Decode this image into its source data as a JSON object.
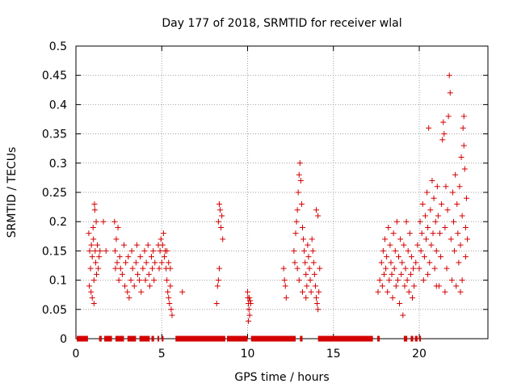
{
  "chart_data": {
    "type": "scatter",
    "title": "Day 177 of 2018, SRMTID for receiver wlal",
    "xlabel": "GPS time / hours",
    "ylabel": "SRMTID / TECUs",
    "xlim": [
      0,
      24
    ],
    "ylim": [
      0,
      0.5
    ],
    "xticks": [
      0,
      5,
      10,
      15,
      20
    ],
    "xtick_labels": [
      "0",
      "5",
      "10",
      "15",
      "20"
    ],
    "yticks": [
      0,
      0.05,
      0.1,
      0.15,
      0.2,
      0.25,
      0.3,
      0.35,
      0.4,
      0.45,
      0.5
    ],
    "ytick_labels": [
      "0",
      "0.05",
      "0.1",
      "0.15",
      "0.2",
      "0.25",
      "0.3",
      "0.35",
      "0.4",
      "0.45",
      "0.5"
    ],
    "grid": true,
    "marker": "+",
    "marker_color": "#d40000",
    "series": [
      {
        "name": "SRMTID",
        "points": [
          [
            0.75,
            0.18
          ],
          [
            0.78,
            0.09
          ],
          [
            0.8,
            0.15
          ],
          [
            0.85,
            0.12
          ],
          [
            0.88,
            0.08
          ],
          [
            0.9,
            0.16
          ],
          [
            0.95,
            0.14
          ],
          [
            1.0,
            0.19
          ],
          [
            1.02,
            0.17
          ],
          [
            1.05,
            0.1
          ],
          [
            1.08,
            0.23
          ],
          [
            1.1,
            0.22
          ],
          [
            1.12,
            0.15
          ],
          [
            1.15,
            0.13
          ],
          [
            1.18,
            0.2
          ],
          [
            1.2,
            0.11
          ],
          [
            1.25,
            0.16
          ],
          [
            1.3,
            0.12
          ],
          [
            1.35,
            0.14
          ],
          [
            0.95,
            0.07
          ],
          [
            1.05,
            0.06
          ],
          [
            1.4,
            0.15
          ],
          [
            1.6,
            0.2
          ],
          [
            1.75,
            0.15
          ],
          [
            2.25,
            0.2
          ],
          [
            2.28,
            0.15
          ],
          [
            2.3,
            0.12
          ],
          [
            2.35,
            0.17
          ],
          [
            2.4,
            0.13
          ],
          [
            2.45,
            0.19
          ],
          [
            2.5,
            0.1
          ],
          [
            2.55,
            0.14
          ],
          [
            2.6,
            0.12
          ],
          [
            2.7,
            0.11
          ],
          [
            2.8,
            0.16
          ],
          [
            2.85,
            0.09
          ],
          [
            2.9,
            0.13
          ],
          [
            3.0,
            0.08
          ],
          [
            3.05,
            0.14
          ],
          [
            3.1,
            0.07
          ],
          [
            3.2,
            0.1
          ],
          [
            3.25,
            0.15
          ],
          [
            3.3,
            0.12
          ],
          [
            3.4,
            0.09
          ],
          [
            3.5,
            0.13
          ],
          [
            3.55,
            0.16
          ],
          [
            3.6,
            0.11
          ],
          [
            3.7,
            0.1
          ],
          [
            3.75,
            0.14
          ],
          [
            3.8,
            0.08
          ],
          [
            3.9,
            0.12
          ],
          [
            4.0,
            0.15
          ],
          [
            4.05,
            0.1
          ],
          [
            4.1,
            0.13
          ],
          [
            4.2,
            0.16
          ],
          [
            4.25,
            0.11
          ],
          [
            4.3,
            0.09
          ],
          [
            4.4,
            0.14
          ],
          [
            4.45,
            0.12
          ],
          [
            4.5,
            0.15
          ],
          [
            4.55,
            0.1
          ],
          [
            4.6,
            0.13
          ],
          [
            4.8,
            0.16
          ],
          [
            4.85,
            0.12
          ],
          [
            4.9,
            0.15
          ],
          [
            4.95,
            0.17
          ],
          [
            5.0,
            0.13
          ],
          [
            5.05,
            0.16
          ],
          [
            5.1,
            0.18
          ],
          [
            5.15,
            0.14
          ],
          [
            5.2,
            0.15
          ],
          [
            5.25,
            0.12
          ],
          [
            5.3,
            0.1
          ],
          [
            5.35,
            0.08
          ],
          [
            5.4,
            0.07
          ],
          [
            5.45,
            0.06
          ],
          [
            5.5,
            0.09
          ],
          [
            5.55,
            0.05
          ],
          [
            5.6,
            0.04
          ],
          [
            5.3,
            0.15
          ],
          [
            5.4,
            0.13
          ],
          [
            5.5,
            0.12
          ],
          [
            6.2,
            0.08
          ],
          [
            8.2,
            0.06
          ],
          [
            8.25,
            0.09
          ],
          [
            8.3,
            0.2
          ],
          [
            8.35,
            0.23
          ],
          [
            8.4,
            0.22
          ],
          [
            8.45,
            0.19
          ],
          [
            8.5,
            0.21
          ],
          [
            8.55,
            0.17
          ],
          [
            8.35,
            0.12
          ],
          [
            8.3,
            0.1
          ],
          [
            10.0,
            0.08
          ],
          [
            10.02,
            0.07
          ],
          [
            10.05,
            0.06
          ],
          [
            10.08,
            0.05
          ],
          [
            10.1,
            0.07
          ],
          [
            10.12,
            0.04
          ],
          [
            10.15,
            0.065
          ],
          [
            10.18,
            0.06
          ],
          [
            10.05,
            0.03
          ],
          [
            12.1,
            0.12
          ],
          [
            12.15,
            0.1
          ],
          [
            12.2,
            0.09
          ],
          [
            12.25,
            0.07
          ],
          [
            12.7,
            0.15
          ],
          [
            12.75,
            0.13
          ],
          [
            12.8,
            0.18
          ],
          [
            12.85,
            0.2
          ],
          [
            12.9,
            0.22
          ],
          [
            12.95,
            0.25
          ],
          [
            13.0,
            0.28
          ],
          [
            13.05,
            0.3
          ],
          [
            13.1,
            0.27
          ],
          [
            13.15,
            0.23
          ],
          [
            13.2,
            0.19
          ],
          [
            13.25,
            0.17
          ],
          [
            13.3,
            0.15
          ],
          [
            13.35,
            0.13
          ],
          [
            13.4,
            0.11
          ],
          [
            13.45,
            0.09
          ],
          [
            13.5,
            0.16
          ],
          [
            13.55,
            0.14
          ],
          [
            13.6,
            0.12
          ],
          [
            13.65,
            0.1
          ],
          [
            13.7,
            0.08
          ],
          [
            13.75,
            0.17
          ],
          [
            13.8,
            0.15
          ],
          [
            13.85,
            0.13
          ],
          [
            13.9,
            0.11
          ],
          [
            13.95,
            0.09
          ],
          [
            14.0,
            0.07
          ],
          [
            14.05,
            0.06
          ],
          [
            14.1,
            0.05
          ],
          [
            14.15,
            0.08
          ],
          [
            14.2,
            0.12
          ],
          [
            14.0,
            0.22
          ],
          [
            14.1,
            0.21
          ],
          [
            13.0,
            0.1
          ],
          [
            13.2,
            0.08
          ],
          [
            13.4,
            0.07
          ],
          [
            12.9,
            0.12
          ],
          [
            17.6,
            0.08
          ],
          [
            17.7,
            0.1
          ],
          [
            17.8,
            0.13
          ],
          [
            17.85,
            0.09
          ],
          [
            17.9,
            0.15
          ],
          [
            17.95,
            0.11
          ],
          [
            18.0,
            0.17
          ],
          [
            18.05,
            0.12
          ],
          [
            18.1,
            0.14
          ],
          [
            18.15,
            0.08
          ],
          [
            18.2,
            0.19
          ],
          [
            18.25,
            0.1
          ],
          [
            18.3,
            0.16
          ],
          [
            18.35,
            0.13
          ],
          [
            18.4,
            0.11
          ],
          [
            18.45,
            0.07
          ],
          [
            18.5,
            0.18
          ],
          [
            18.55,
            0.12
          ],
          [
            18.6,
            0.15
          ],
          [
            18.65,
            0.09
          ],
          [
            18.7,
            0.2
          ],
          [
            18.75,
            0.1
          ],
          [
            18.8,
            0.14
          ],
          [
            18.85,
            0.06
          ],
          [
            18.9,
            0.17
          ],
          [
            18.95,
            0.11
          ],
          [
            19.0,
            0.13
          ],
          [
            19.05,
            0.04
          ],
          [
            19.1,
            0.16
          ],
          [
            19.15,
            0.09
          ],
          [
            19.2,
            0.12
          ],
          [
            19.25,
            0.2
          ],
          [
            19.3,
            0.1
          ],
          [
            19.35,
            0.15
          ],
          [
            19.4,
            0.08
          ],
          [
            19.45,
            0.18
          ],
          [
            19.5,
            0.11
          ],
          [
            19.55,
            0.14
          ],
          [
            19.6,
            0.07
          ],
          [
            19.65,
            0.12
          ],
          [
            19.7,
            0.09
          ],
          [
            19.8,
            0.13
          ],
          [
            19.9,
            0.16
          ],
          [
            20.0,
            0.12
          ],
          [
            20.05,
            0.2
          ],
          [
            20.1,
            0.15
          ],
          [
            20.15,
            0.18
          ],
          [
            20.2,
            0.23
          ],
          [
            20.25,
            0.1
          ],
          [
            20.3,
            0.14
          ],
          [
            20.35,
            0.21
          ],
          [
            20.4,
            0.17
          ],
          [
            20.45,
            0.25
          ],
          [
            20.5,
            0.19
          ],
          [
            20.55,
            0.36
          ],
          [
            20.6,
            0.13
          ],
          [
            20.65,
            0.22
          ],
          [
            20.7,
            0.16
          ],
          [
            20.75,
            0.27
          ],
          [
            20.8,
            0.18
          ],
          [
            20.85,
            0.24
          ],
          [
            20.9,
            0.12
          ],
          [
            20.95,
            0.2
          ],
          [
            21.0,
            0.15
          ],
          [
            21.05,
            0.26
          ],
          [
            21.1,
            0.21
          ],
          [
            21.15,
            0.09
          ],
          [
            21.2,
            0.18
          ],
          [
            21.25,
            0.14
          ],
          [
            21.3,
            0.23
          ],
          [
            21.35,
            0.34
          ],
          [
            21.4,
            0.37
          ],
          [
            21.45,
            0.35
          ],
          [
            21.5,
            0.19
          ],
          [
            21.55,
            0.26
          ],
          [
            21.6,
            0.12
          ],
          [
            21.65,
            0.22
          ],
          [
            21.7,
            0.38
          ],
          [
            21.75,
            0.45
          ],
          [
            21.8,
            0.42
          ],
          [
            21.85,
            0.17
          ],
          [
            21.9,
            0.1
          ],
          [
            21.95,
            0.25
          ],
          [
            22.0,
            0.2
          ],
          [
            22.05,
            0.15
          ],
          [
            22.1,
            0.28
          ],
          [
            22.15,
            0.09
          ],
          [
            22.2,
            0.23
          ],
          [
            22.25,
            0.18
          ],
          [
            22.3,
            0.13
          ],
          [
            22.35,
            0.26
          ],
          [
            22.4,
            0.16
          ],
          [
            22.45,
            0.31
          ],
          [
            22.5,
            0.21
          ],
          [
            22.55,
            0.36
          ],
          [
            22.6,
            0.38
          ],
          [
            22.65,
            0.29
          ],
          [
            22.7,
            0.19
          ],
          [
            22.75,
            0.24
          ],
          [
            22.8,
            0.17
          ],
          [
            22.6,
            0.33
          ],
          [
            22.7,
            0.14
          ],
          [
            22.5,
            0.1
          ],
          [
            22.4,
            0.08
          ],
          [
            21.0,
            0.09
          ],
          [
            21.5,
            0.08
          ],
          [
            20.5,
            0.11
          ]
        ],
        "zero_intervals": [
          [
            0.05,
            0.7
          ],
          [
            1.35,
            1.5
          ],
          [
            1.65,
            2.1
          ],
          [
            2.3,
            2.8
          ],
          [
            3.0,
            3.5
          ],
          [
            3.7,
            4.3
          ],
          [
            4.4,
            4.55
          ],
          [
            4.75,
            4.85
          ],
          [
            5.0,
            5.1
          ],
          [
            5.8,
            8.7
          ],
          [
            8.8,
            10.0
          ],
          [
            10.2,
            12.8
          ],
          [
            13.05,
            13.2
          ],
          [
            14.1,
            17.3
          ],
          [
            17.55,
            17.7
          ],
          [
            19.1,
            19.3
          ],
          [
            19.5,
            19.65
          ],
          [
            19.75,
            19.9
          ],
          [
            20.0,
            20.1
          ]
        ]
      }
    ]
  }
}
